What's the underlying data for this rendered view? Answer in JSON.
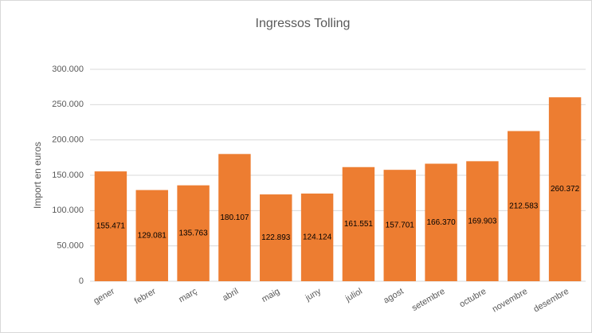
{
  "chart_data": {
    "type": "bar",
    "title": "Ingressos Tolling",
    "y_label": "Import en euros",
    "categories": [
      "gener",
      "febrer",
      "març",
      "abril",
      "maig",
      "juny",
      "juliol",
      "agost",
      "setembre",
      "octubre",
      "novembre",
      "desembre"
    ],
    "values": [
      155471,
      129081,
      135763,
      180107,
      122893,
      124124,
      161551,
      157701,
      166370,
      169903,
      212583,
      260372
    ],
    "value_labels": [
      "155.471",
      "129.081",
      "135.763",
      "180.107",
      "122.893",
      "124.124",
      "161.551",
      "157.701",
      "166.370",
      "169.903",
      "212.583",
      "260.372"
    ],
    "color": "#ed7d31",
    "ylim": [
      0,
      300000
    ],
    "yticks": [
      0,
      {
        "value": 50000,
        "label": "50.000"
      },
      {
        "value": 100000,
        "label": "100.000"
      },
      {
        "value": 150000,
        "label": "150.000"
      },
      {
        "value": 200000,
        "label": "200.000"
      },
      {
        "value": 250000,
        "label": "250.000"
      },
      {
        "value": 300000,
        "label": "300.000"
      }
    ],
    "grid": true
  }
}
